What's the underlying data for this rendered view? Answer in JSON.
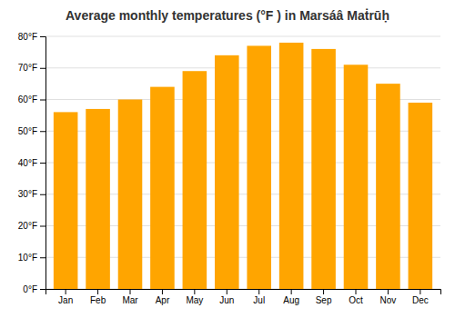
{
  "chart_data": {
    "type": "bar",
    "title": "Average monthly temperatures (°F ) in Marsáâ Maṫrūḥ",
    "categories": [
      "Jan",
      "Feb",
      "Mar",
      "Apr",
      "May",
      "Jun",
      "Jul",
      "Aug",
      "Sep",
      "Oct",
      "Nov",
      "Dec"
    ],
    "values": [
      56,
      57,
      60,
      64,
      69,
      74,
      77,
      78,
      76,
      71,
      65,
      59
    ],
    "color": "#FFA500",
    "ylim": [
      0,
      80
    ],
    "yticks": [
      {
        "value": 0,
        "label": "0°F"
      },
      {
        "value": 10,
        "label": "10°F"
      },
      {
        "value": 20,
        "label": "20°F"
      },
      {
        "value": 30,
        "label": "30°F"
      },
      {
        "value": 40,
        "label": "40°F"
      },
      {
        "value": 50,
        "label": "50°F"
      },
      {
        "value": 60,
        "label": "60°F"
      },
      {
        "value": 70,
        "label": "70°F"
      },
      {
        "value": 80,
        "label": "80°F"
      }
    ],
    "grid": true
  }
}
